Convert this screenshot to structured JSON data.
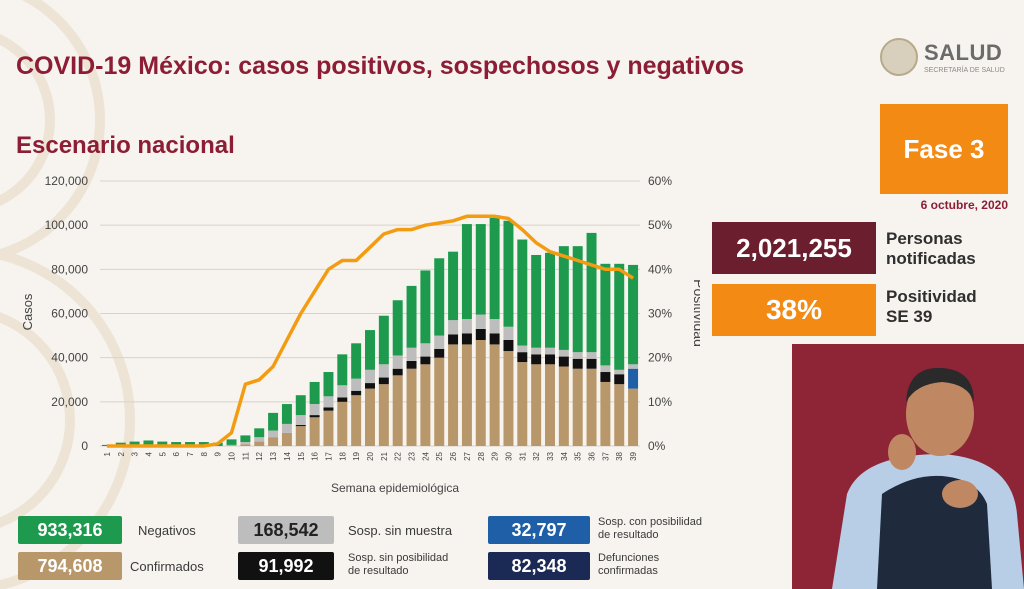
{
  "header": {
    "title": "COVID-19 México: casos positivos, sospechosos y negativos",
    "subtitle": "Escenario nacional",
    "logo_text": "SALUD",
    "logo_subtext": "SECRETARÍA DE SALUD"
  },
  "side_panel": {
    "phase": "Fase 3",
    "date": "6 octubre, 2020",
    "notified_value": "2,021,255",
    "notified_label_1": "Personas",
    "notified_label_2": "notificadas",
    "positivity_value": "38%",
    "positivity_label_1": "Positividad",
    "positivity_label_2": "SE 39"
  },
  "legend": {
    "negativos_value": "933,316",
    "negativos_label": "Negativos",
    "confirmados_value": "794,608",
    "confirmados_label": "Confirmados",
    "sosp_sin_muestra_value": "168,542",
    "sosp_sin_muestra_label": "Sosp. sin muestra",
    "sosp_sin_pos_value": "91,992",
    "sosp_sin_pos_label_1": "Sosp. sin posibilidad",
    "sosp_sin_pos_label_2": "de resultado",
    "sosp_con_pos_value": "32,797",
    "sosp_con_pos_label_1": "Sosp. con posibilidad",
    "sosp_con_pos_label_2": "de resultado",
    "defunciones_value": "82,348",
    "defunciones_label_1": "Defunciones",
    "defunciones_label_2": "confirmadas"
  },
  "colors": {
    "negativos": "#1d9a4e",
    "confirmados": "#b8976a",
    "sosp_sin_muestra": "#bdbdbd",
    "sosp_sin_pos": "#111111",
    "sosp_con_pos": "#1f5fa8",
    "defunciones": "#1b2a55",
    "positividad": "#f39c12",
    "title": "#8c1d35"
  },
  "chart_data": {
    "type": "bar",
    "stacked": true,
    "xlabel": "Semana epidemiológica",
    "ylabel": "Casos",
    "y2label": "Positividad",
    "ylim": [
      0,
      120000
    ],
    "y2lim": [
      0,
      60
    ],
    "yticks": [
      "0",
      "20,000",
      "40,000",
      "60,000",
      "80,000",
      "100,000",
      "120,000"
    ],
    "y2ticks": [
      "0%",
      "10%",
      "20%",
      "30%",
      "40%",
      "50%",
      "60%"
    ],
    "categories": [
      "1",
      "2",
      "3",
      "4",
      "5",
      "6",
      "7",
      "8",
      "9",
      "10",
      "11",
      "12",
      "13",
      "14",
      "15",
      "16",
      "17",
      "18",
      "19",
      "20",
      "21",
      "22",
      "23",
      "24",
      "25",
      "26",
      "27",
      "28",
      "29",
      "30",
      "31",
      "32",
      "33",
      "34",
      "35",
      "36",
      "37",
      "38",
      "39"
    ],
    "series": [
      {
        "key": "confirmados",
        "values": [
          0,
          0,
          0,
          0,
          0,
          0,
          0,
          0,
          0,
          200,
          800,
          2000,
          4000,
          6000,
          9000,
          13000,
          16000,
          20000,
          23000,
          26000,
          28000,
          32000,
          35000,
          37000,
          40000,
          46000,
          46000,
          48000,
          46000,
          43000,
          38000,
          37000,
          37000,
          36000,
          35000,
          35000,
          29000,
          28000,
          26000
        ]
      },
      {
        "key": "sosp_con_pos",
        "values": [
          0,
          0,
          0,
          0,
          0,
          0,
          0,
          0,
          0,
          0,
          0,
          0,
          0,
          0,
          0,
          0,
          0,
          0,
          0,
          0,
          0,
          0,
          0,
          0,
          0,
          0,
          0,
          0,
          0,
          0,
          0,
          0,
          0,
          0,
          0,
          0,
          0,
          0,
          9000
        ]
      },
      {
        "key": "sosp_sin_pos",
        "values": [
          0,
          0,
          0,
          0,
          0,
          0,
          0,
          0,
          0,
          0,
          0,
          0,
          0,
          0,
          500,
          1000,
          1500,
          2000,
          2000,
          2500,
          3000,
          3000,
          3500,
          3500,
          4000,
          4500,
          5000,
          5000,
          5000,
          5000,
          4500,
          4500,
          4500,
          4500,
          4500,
          4500,
          4500,
          4500,
          0
        ]
      },
      {
        "key": "sosp_sin_muestra",
        "values": [
          0,
          0,
          0,
          0,
          0,
          0,
          0,
          0,
          0,
          300,
          1000,
          2000,
          3000,
          4000,
          4500,
          5000,
          5000,
          5500,
          5500,
          6000,
          6000,
          6000,
          6000,
          6000,
          6000,
          6500,
          6500,
          6500,
          6500,
          6000,
          3000,
          3000,
          3000,
          3000,
          3000,
          3000,
          3000,
          2000,
          2000
        ]
      },
      {
        "key": "negativos",
        "values": [
          500,
          1500,
          2000,
          2500,
          2000,
          1800,
          1800,
          1800,
          1500,
          2500,
          3000,
          4000,
          8000,
          9000,
          9000,
          10000,
          11000,
          14000,
          16000,
          18000,
          22000,
          25000,
          28000,
          33000,
          35000,
          31000,
          43000,
          41000,
          47000,
          48000,
          48000,
          42000,
          43000,
          47000,
          48000,
          54000,
          46000,
          48000,
          45000
        ]
      }
    ],
    "line": {
      "key": "positividad",
      "values": [
        0,
        0,
        0,
        0,
        0,
        0,
        0,
        0,
        0.5,
        3,
        14,
        15,
        18,
        24,
        30,
        35,
        40,
        42,
        42,
        45,
        48,
        49,
        49,
        50,
        50.5,
        51,
        52,
        52,
        52,
        51.5,
        49,
        46,
        44,
        43,
        42,
        41,
        40,
        40,
        38
      ]
    }
  }
}
